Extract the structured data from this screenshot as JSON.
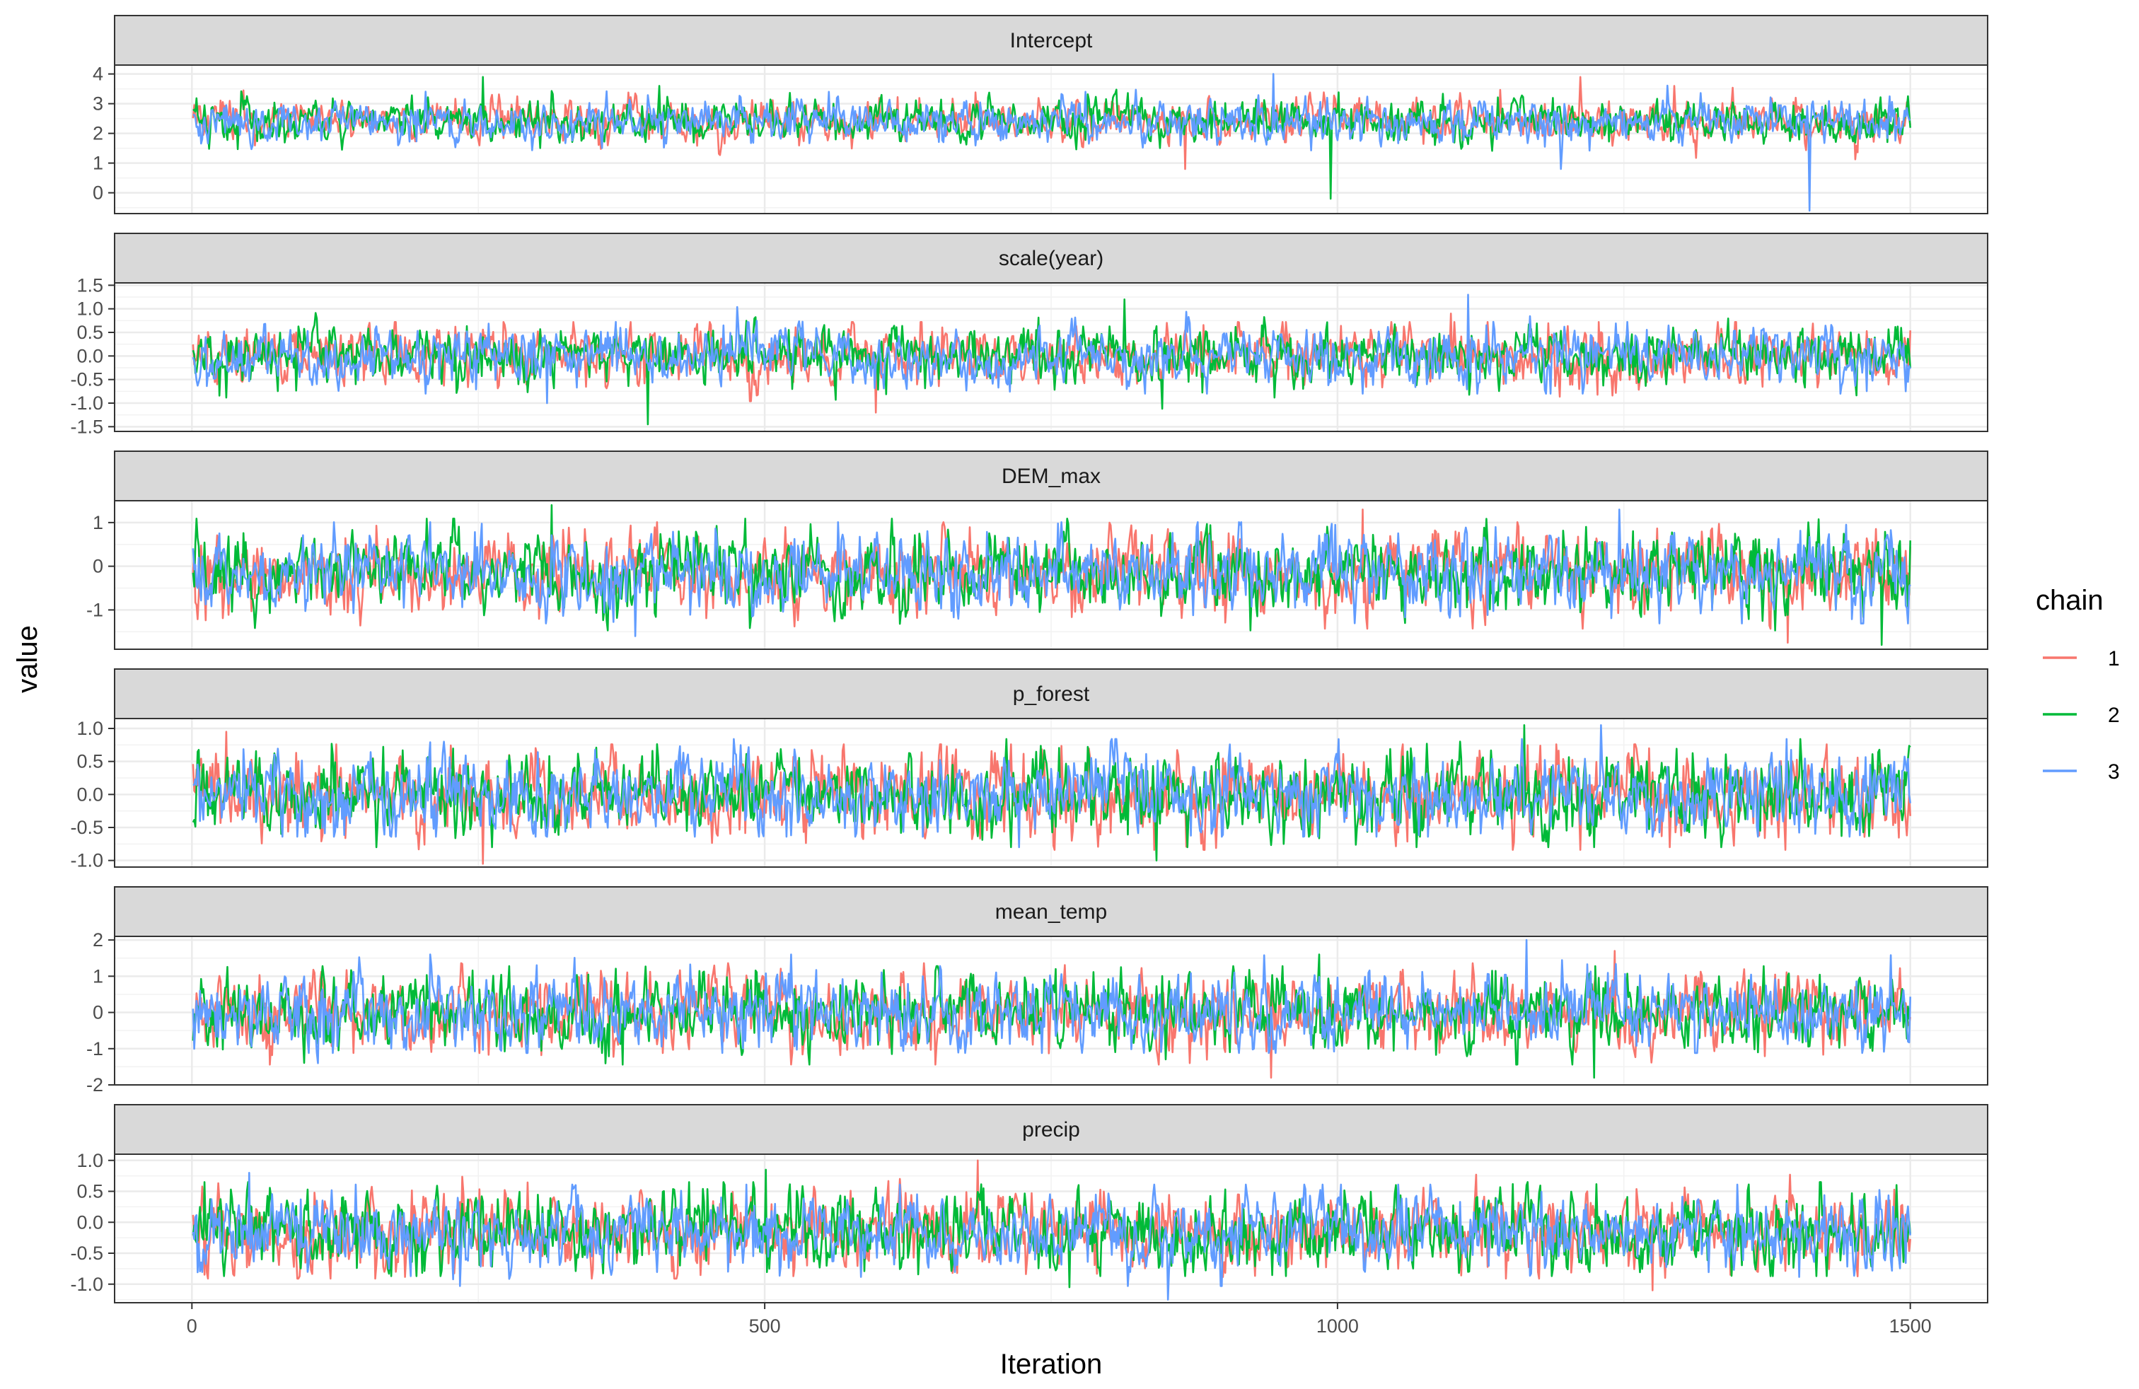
{
  "chart_data": {
    "type": "line",
    "xlabel": "Iteration",
    "ylabel": "value",
    "xlim": [
      0,
      1500
    ],
    "x_ticks": [
      0,
      500,
      1000,
      1500
    ],
    "iterations": 1500,
    "legend": {
      "title": "chain",
      "placement": "right",
      "entries": [
        {
          "label": "1",
          "color": "#F8766D"
        },
        {
          "label": "2",
          "color": "#00BA38"
        },
        {
          "label": "3",
          "color": "#619CFF"
        }
      ]
    },
    "grid": true,
    "panels": [
      {
        "name": "Intercept",
        "ylim": [
          -0.7,
          4.3
        ],
        "y_ticks": [
          0,
          1,
          2,
          3,
          4
        ],
        "y_tick_labels": [
          "0",
          "1",
          "2",
          "3",
          "4"
        ],
        "center": 2.4,
        "spread": 0.35,
        "chain_extremes": {
          "1": [
            0.8,
            3.9
          ],
          "2": [
            -0.2,
            3.9
          ],
          "3": [
            -0.6,
            4.0
          ]
        }
      },
      {
        "name": "scale(year)",
        "ylim": [
          -1.6,
          1.55
        ],
        "y_ticks": [
          -1.5,
          -1.0,
          -0.5,
          0.0,
          0.5,
          1.0,
          1.5
        ],
        "y_tick_labels": [
          "-1.5",
          "-1.0",
          "-0.5",
          "0.0",
          "0.5",
          "1.0",
          "1.5"
        ],
        "center": 0.0,
        "spread": 0.3,
        "chain_extremes": {
          "1": [
            -1.2,
            0.9
          ],
          "2": [
            -1.45,
            1.2
          ],
          "3": [
            -1.0,
            1.3
          ]
        }
      },
      {
        "name": "DEM_max",
        "ylim": [
          -1.9,
          1.5
        ],
        "y_ticks": [
          -1,
          0,
          1
        ],
        "y_tick_labels": [
          "-1",
          "0",
          "1"
        ],
        "center": -0.15,
        "spread": 0.45,
        "chain_extremes": {
          "1": [
            -1.75,
            1.3
          ],
          "2": [
            -1.8,
            1.4
          ],
          "3": [
            -1.6,
            1.3
          ]
        }
      },
      {
        "name": "p_forest",
        "ylim": [
          -1.1,
          1.15
        ],
        "y_ticks": [
          -1.0,
          -0.5,
          0.0,
          0.5,
          1.0
        ],
        "y_tick_labels": [
          "-1.0",
          "-0.5",
          "0.0",
          "0.5",
          "1.0"
        ],
        "center": 0.0,
        "spread": 0.3,
        "chain_extremes": {
          "1": [
            -1.05,
            0.95
          ],
          "2": [
            -1.0,
            1.05
          ],
          "3": [
            -0.8,
            1.05
          ]
        }
      },
      {
        "name": "mean_temp",
        "ylim": [
          -2.0,
          2.1
        ],
        "y_ticks": [
          -2,
          -1,
          0,
          1,
          2
        ],
        "y_tick_labels": [
          "-2",
          "-1",
          "0",
          "1",
          "2"
        ],
        "center": 0.0,
        "spread": 0.5,
        "chain_extremes": {
          "1": [
            -1.8,
            1.7
          ],
          "2": [
            -1.8,
            1.6
          ],
          "3": [
            -1.4,
            2.0
          ]
        }
      },
      {
        "name": "precip",
        "ylim": [
          -1.3,
          1.1
        ],
        "y_ticks": [
          -1.0,
          -0.5,
          0.0,
          0.5,
          1.0
        ],
        "y_tick_labels": [
          "-1.0",
          "-0.5",
          "0.0",
          "0.5",
          "1.0"
        ],
        "center": -0.15,
        "spread": 0.3,
        "chain_extremes": {
          "1": [
            -1.1,
            1.0
          ],
          "2": [
            -1.05,
            0.85
          ],
          "3": [
            -1.25,
            0.8
          ]
        }
      }
    ]
  }
}
